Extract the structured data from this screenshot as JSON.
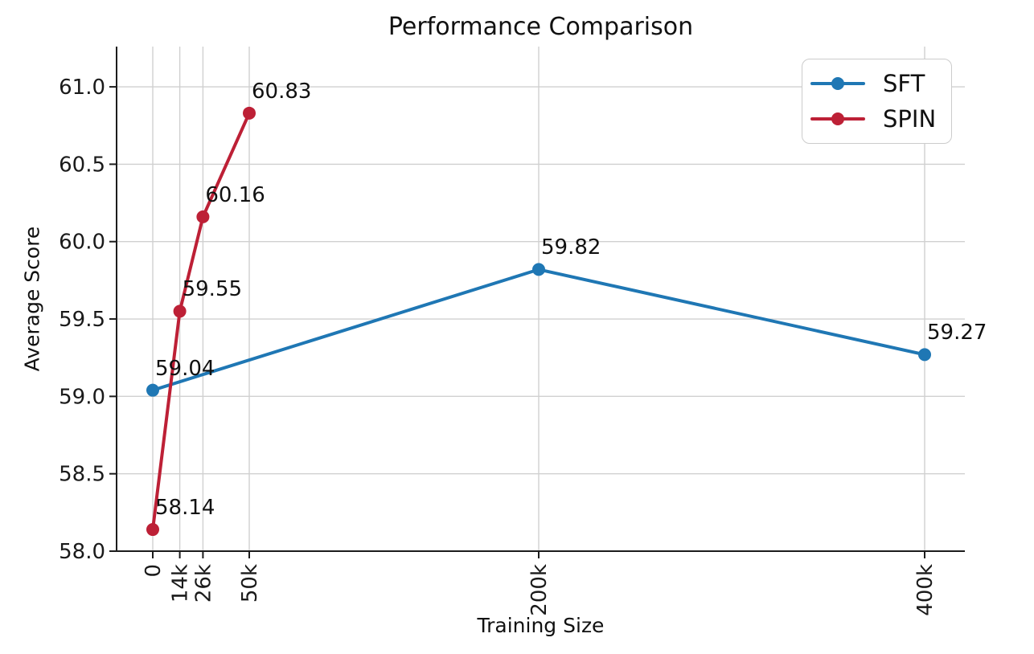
{
  "figure": {
    "title": "Performance Comparison",
    "xlabel": "Training Size",
    "ylabel": "Average Score"
  },
  "chart_data": {
    "type": "line",
    "title": "Performance Comparison",
    "xlabel": "Training Size",
    "ylabel": "Average Score",
    "grid": true,
    "legend_position": "upper right",
    "xlim": [
      -18750,
      420833
    ],
    "ylim": [
      58.0,
      61.26
    ],
    "xticks": [
      {
        "value": 0,
        "label": "0"
      },
      {
        "value": 14000,
        "label": "14k"
      },
      {
        "value": 26000,
        "label": "26k"
      },
      {
        "value": 50000,
        "label": "50k"
      },
      {
        "value": 200000,
        "label": "200k"
      },
      {
        "value": 400000,
        "label": "400k"
      }
    ],
    "yticks": [
      {
        "value": 58.0,
        "label": "58.0"
      },
      {
        "value": 58.5,
        "label": "58.5"
      },
      {
        "value": 59.0,
        "label": "59.0"
      },
      {
        "value": 59.5,
        "label": "59.5"
      },
      {
        "value": 60.0,
        "label": "60.0"
      },
      {
        "value": 60.5,
        "label": "60.5"
      },
      {
        "value": 61.0,
        "label": "61.0"
      }
    ],
    "series": [
      {
        "name": "SFT",
        "color": "#1f77b4",
        "x": [
          0,
          200000,
          400000
        ],
        "y": [
          59.04,
          59.82,
          59.27
        ],
        "point_labels": [
          "59.04",
          "59.82",
          "59.27"
        ]
      },
      {
        "name": "SPIN",
        "color": "#bd2036",
        "x": [
          0,
          14000,
          26000,
          50000
        ],
        "y": [
          58.14,
          59.55,
          60.16,
          60.83
        ],
        "point_labels": [
          "58.14",
          "59.55",
          "60.16",
          "60.83"
        ]
      }
    ]
  }
}
